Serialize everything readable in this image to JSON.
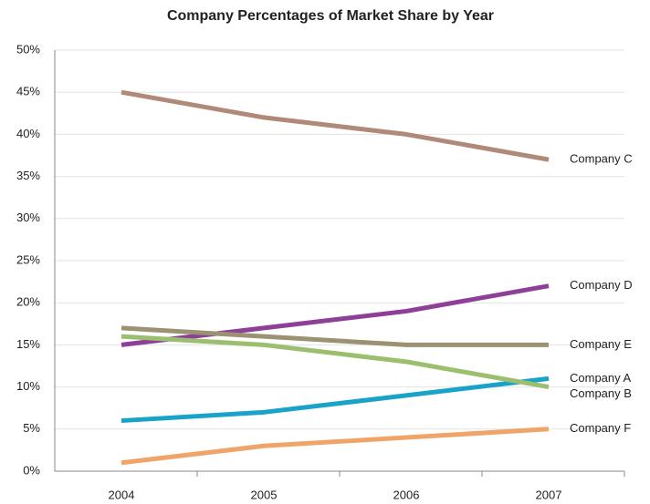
{
  "chart_data": {
    "type": "line",
    "title": "Company Percentages of Market Share by Year",
    "categories": [
      "2004",
      "2005",
      "2006",
      "2007"
    ],
    "series": [
      {
        "name": "Company C",
        "color": "#b08a78",
        "values": [
          45,
          42,
          40,
          37
        ]
      },
      {
        "name": "Company D",
        "color": "#8e3f97",
        "values": [
          15,
          17,
          19,
          22
        ]
      },
      {
        "name": "Company E",
        "color": "#9a9272",
        "values": [
          17,
          16,
          15,
          15
        ]
      },
      {
        "name": "Company A",
        "color": "#1aa3c8",
        "values": [
          6,
          7,
          9,
          11
        ]
      },
      {
        "name": "Company B",
        "color": "#9bbf6e",
        "values": [
          16,
          15,
          13,
          10
        ]
      },
      {
        "name": "Company F",
        "color": "#f0a468",
        "values": [
          1,
          3,
          4,
          5
        ]
      }
    ],
    "ylim": [
      0,
      50
    ],
    "yticks": [
      {
        "value": 0,
        "label": "0%"
      },
      {
        "value": 5,
        "label": "5%"
      },
      {
        "value": 10,
        "label": "10%"
      },
      {
        "value": 15,
        "label": "15%"
      },
      {
        "value": 20,
        "label": "20%"
      },
      {
        "value": 25,
        "label": "25%"
      },
      {
        "value": 30,
        "label": "30%"
      },
      {
        "value": 35,
        "label": "35%"
      },
      {
        "value": 40,
        "label": "40%"
      },
      {
        "value": 45,
        "label": "45%"
      },
      {
        "value": 50,
        "label": "50%"
      }
    ],
    "grid": true,
    "legend": "line-end"
  }
}
